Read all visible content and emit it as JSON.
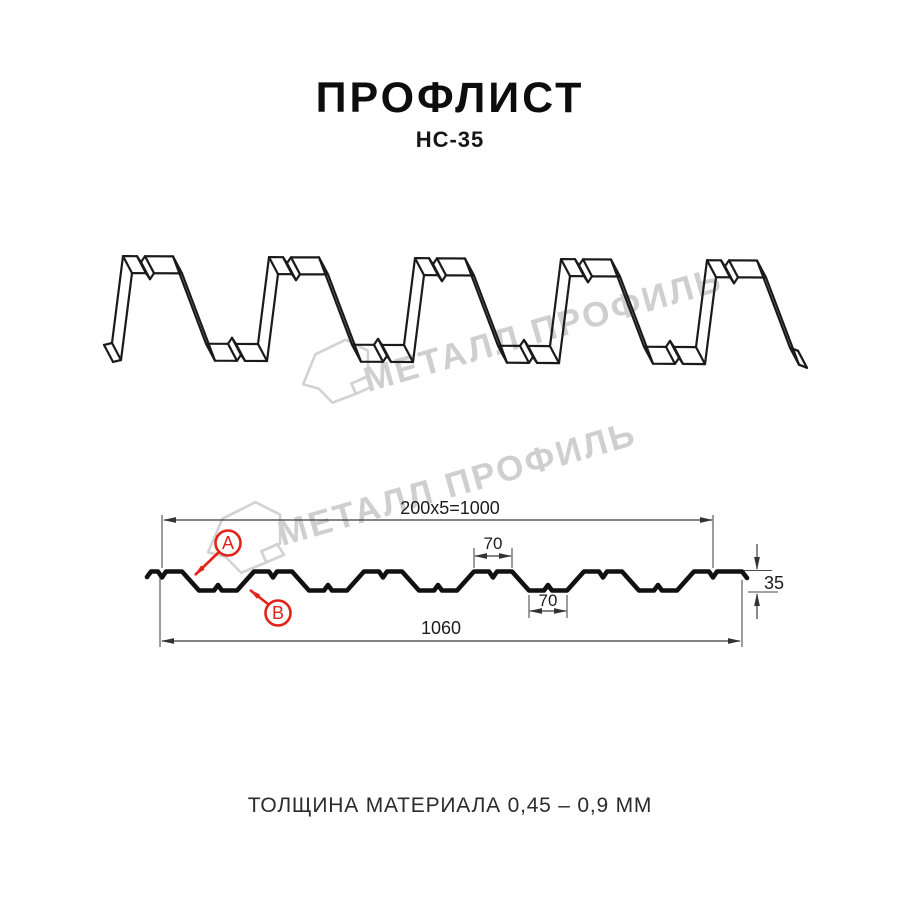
{
  "page": {
    "title": "ПРОФЛИСТ",
    "subtitle": "НС-35",
    "footer": "ТОЛЩИНА МАТЕРИАЛА 0,45 – 0,9 ММ"
  },
  "watermark": {
    "brand": "МЕТАЛЛ ПРОФИЛЬ"
  },
  "section": {
    "dim_coverage": "200x5=1000",
    "dim_rib_width": "70",
    "dim_valley_width": "70",
    "dim_overall": "1060",
    "dim_height": "35",
    "callout_a": "A",
    "callout_b": "B"
  },
  "colors": {
    "accent_red": "#e2231a",
    "line_black": "#1a1a1a",
    "watermark_gray": "#cfcfcf"
  }
}
